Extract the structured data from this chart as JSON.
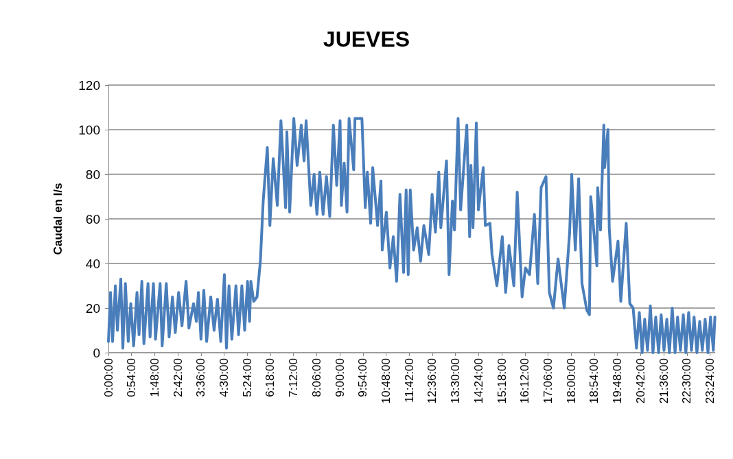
{
  "chart_data": {
    "type": "line",
    "title": "JUEVES",
    "ylabel": "Caudal en l/s",
    "xlim": [
      0,
      23.6
    ],
    "xticks": [
      {
        "value": 0,
        "label": "0:00:00"
      },
      {
        "value": 0.9,
        "label": "0:54:00"
      },
      {
        "value": 1.8,
        "label": "1:48:00"
      },
      {
        "value": 2.7,
        "label": "2:42:00"
      },
      {
        "value": 3.6,
        "label": "3:36:00"
      },
      {
        "value": 4.5,
        "label": "4:30:00"
      },
      {
        "value": 5.4,
        "label": "5:24:00"
      },
      {
        "value": 6.3,
        "label": "6:18:00"
      },
      {
        "value": 7.2,
        "label": "7:12:00"
      },
      {
        "value": 8.1,
        "label": "8:06:00"
      },
      {
        "value": 9,
        "label": "9:00:00"
      },
      {
        "value": 9.9,
        "label": "9:54:00"
      },
      {
        "value": 10.8,
        "label": "10:48:00"
      },
      {
        "value": 11.7,
        "label": "11:42:00"
      },
      {
        "value": 12.6,
        "label": "12:36:00"
      },
      {
        "value": 13.5,
        "label": "13:30:00"
      },
      {
        "value": 14.4,
        "label": "14:24:00"
      },
      {
        "value": 15.3,
        "label": "15:18:00"
      },
      {
        "value": 16.2,
        "label": "16:12:00"
      },
      {
        "value": 17.1,
        "label": "17:06:00"
      },
      {
        "value": 18,
        "label": "18:00:00"
      },
      {
        "value": 18.9,
        "label": "18:54:00"
      },
      {
        "value": 19.8,
        "label": "19:48:00"
      },
      {
        "value": 20.7,
        "label": "20:42:00"
      },
      {
        "value": 21.6,
        "label": "21:36:00"
      },
      {
        "value": 22.5,
        "label": "22:30:00"
      },
      {
        "value": 23.4,
        "label": "23:24:00"
      }
    ],
    "ylim": [
      0,
      120
    ],
    "yticks": [
      0,
      20,
      40,
      60,
      80,
      100,
      120
    ],
    "grid": "y",
    "marker": "none",
    "line_style": "solid",
    "series": [
      {
        "color": "#4a7ebb",
        "x": [
          0,
          0.08,
          0.16,
          0.27,
          0.35,
          0.48,
          0.56,
          0.66,
          0.77,
          0.87,
          0.98,
          1.11,
          1.19,
          1.3,
          1.38,
          1.54,
          1.62,
          1.75,
          1.83,
          2.01,
          2.09,
          2.25,
          2.36,
          2.49,
          2.6,
          2.73,
          2.86,
          3.02,
          3.13,
          3.31,
          3.42,
          3.5,
          3.6,
          3.71,
          3.82,
          3.98,
          4.11,
          4.24,
          4.37,
          4.51,
          4.59,
          4.69,
          4.8,
          4.96,
          5.06,
          5.19,
          5.3,
          5.41,
          5.49,
          5.54,
          5.65,
          5.78,
          5.91,
          6.02,
          6.18,
          6.28,
          6.41,
          6.57,
          6.71,
          6.89,
          6.94,
          7.05,
          7.21,
          7.34,
          7.5,
          7.61,
          7.69,
          7.87,
          8,
          8.11,
          8.22,
          8.35,
          8.48,
          8.61,
          8.75,
          8.88,
          9.01,
          9.06,
          9.17,
          9.28,
          9.36,
          9.54,
          9.59,
          9.86,
          9.99,
          10.07,
          10.2,
          10.28,
          10.47,
          10.6,
          10.65,
          10.81,
          10.95,
          11.08,
          11.21,
          11.34,
          11.48,
          11.58,
          11.66,
          11.74,
          11.87,
          12.01,
          12.14,
          12.27,
          12.46,
          12.59,
          12.72,
          12.85,
          12.93,
          13.15,
          13.25,
          13.38,
          13.46,
          13.6,
          13.7,
          13.94,
          14.05,
          14.1,
          14.18,
          14.31,
          14.39,
          14.58,
          14.66,
          14.84,
          14.92,
          15.11,
          15.32,
          15.45,
          15.58,
          15.77,
          15.9,
          16.09,
          16.22,
          16.38,
          16.57,
          16.7,
          16.83,
          17.02,
          17.15,
          17.31,
          17.49,
          17.73,
          17.94,
          18.02,
          18.16,
          18.29,
          18.42,
          18.61,
          18.71,
          18.76,
          19,
          19.03,
          19.14,
          19.27,
          19.3,
          19.43,
          19.48,
          19.61,
          19.82,
          19.93,
          20.14,
          20.28,
          20.41,
          20.54,
          20.65,
          20.76,
          20.86,
          20.97,
          21.08,
          21.18,
          21.29,
          21.4,
          21.5,
          21.61,
          21.72,
          21.82,
          21.93,
          22.04,
          22.14,
          22.25,
          22.36,
          22.46,
          22.57,
          22.68,
          22.78,
          22.89,
          23,
          23.1,
          23.21,
          23.32,
          23.42,
          23.53,
          23.59
        ],
        "values": [
          5,
          27,
          5,
          30,
          10,
          33,
          2,
          31,
          5,
          22,
          3,
          27,
          8,
          32,
          4,
          31,
          7,
          31,
          6,
          31,
          3,
          31,
          7,
          25,
          9,
          27,
          12,
          32,
          11,
          22,
          14,
          27,
          6,
          28,
          5,
          25,
          10,
          24,
          5,
          35,
          2,
          30,
          6,
          30,
          8,
          30,
          10,
          32,
          14,
          32,
          23,
          25,
          41,
          68,
          92,
          57,
          87,
          66,
          104,
          65,
          99,
          63,
          105,
          84,
          102,
          86,
          104,
          66,
          80,
          62,
          81,
          62,
          79,
          61,
          102,
          75,
          104,
          66,
          85,
          63,
          105,
          82,
          105,
          105,
          65,
          81,
          58,
          83,
          57,
          77,
          46,
          63,
          38,
          52,
          32,
          71,
          36,
          73,
          35,
          73,
          46,
          56,
          41,
          57,
          44,
          71,
          54,
          81,
          56,
          86,
          35,
          68,
          55,
          105,
          64,
          102,
          52,
          84,
          56,
          103,
          64,
          83,
          57,
          58,
          44,
          30,
          52,
          27,
          48,
          30,
          72,
          25,
          38,
          35,
          62,
          31,
          74,
          79,
          27,
          20,
          42,
          20,
          54,
          80,
          46,
          78,
          31,
          19,
          17,
          70,
          39,
          74,
          55,
          102,
          83,
          100,
          56,
          32,
          50,
          23,
          58,
          22,
          20,
          2,
          18,
          0,
          15,
          1,
          21,
          0,
          16,
          0,
          17,
          1,
          15,
          0,
          20,
          0,
          16,
          1,
          17,
          0,
          18,
          1,
          16,
          0,
          14,
          1,
          15,
          0,
          16,
          1,
          16
        ]
      }
    ]
  }
}
